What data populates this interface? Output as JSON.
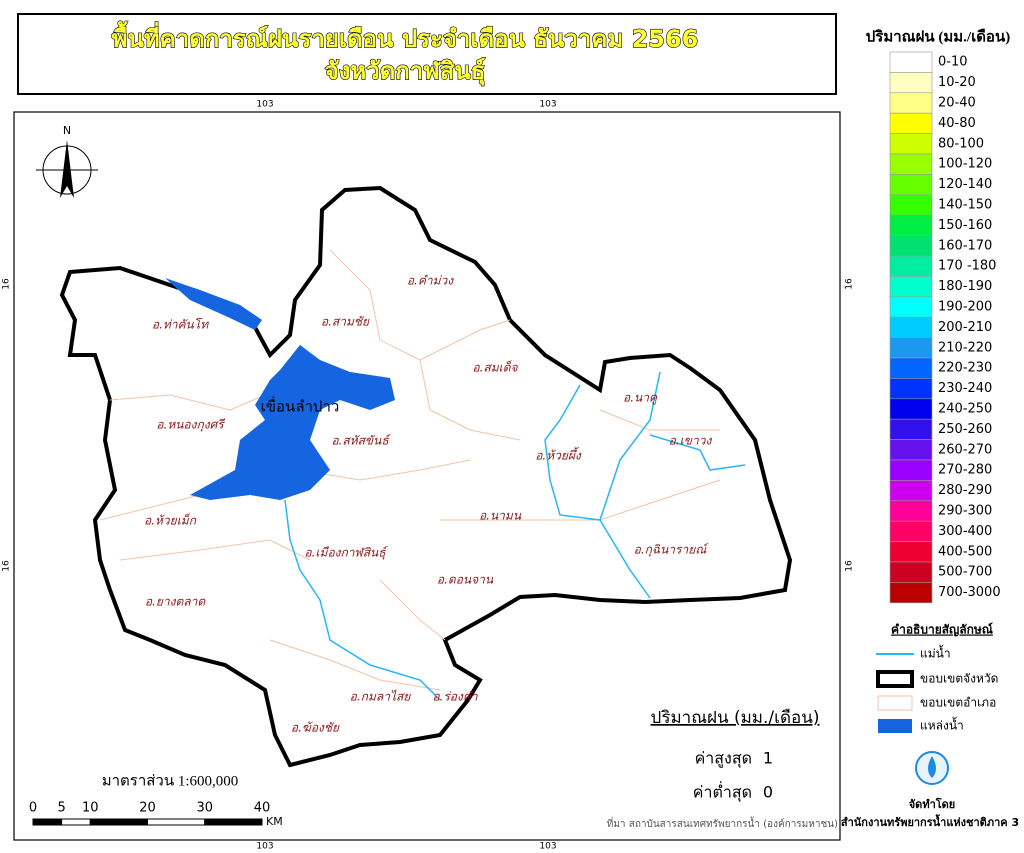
{
  "title": {
    "line1": "พื้นที่คาดการณ์ฝนรายเดือน ประจำเดือน ธันวาคม 2566",
    "line2": "จังหวัดกาฬสินธุ์"
  },
  "coordinates": {
    "top": [
      "103",
      "103"
    ],
    "bottom": [
      "103",
      "103"
    ],
    "left": [
      "16",
      "16"
    ],
    "right": [
      "16",
      "16"
    ]
  },
  "north": "N",
  "map_labels": {
    "reservoir": "เขื่อนลำปาว",
    "districts": [
      "อ.ท่าคันโท",
      "อ.สามชัย",
      "อ.คำม่วง",
      "อ.สมเด็จ",
      "อ.หนองกุงศรี",
      "อ.สหัสขันธ์",
      "อ.นาคู",
      "อ.เขาวง",
      "อ.ห้วยผึ้ง",
      "อ.ห้วยเม็ก",
      "อ.นามน",
      "อ.เมืองกาฬสินธุ์",
      "อ.กุฉินารายณ์",
      "อ.ดอนจาน",
      "อ.ยางตลาด",
      "อ.กมลาไสย",
      "อ.ร่องคำ",
      "อ.ฆ้องชัย"
    ]
  },
  "legend": {
    "title": "ปริมาณฝน (มม./เดือน)",
    "classes": [
      {
        "label": "0-10",
        "color": "#ffffff"
      },
      {
        "label": "10-20",
        "color": "#ffffc0"
      },
      {
        "label": "20-40",
        "color": "#ffff88"
      },
      {
        "label": "40-80",
        "color": "#ffff00"
      },
      {
        "label": "80-100",
        "color": "#ccff00"
      },
      {
        "label": "100-120",
        "color": "#99ff00"
      },
      {
        "label": "120-140",
        "color": "#66ff00"
      },
      {
        "label": "140-150",
        "color": "#33ff00"
      },
      {
        "label": "150-160",
        "color": "#00ee44"
      },
      {
        "label": "160-170",
        "color": "#00e070"
      },
      {
        "label": "170 -180",
        "color": "#00eea0"
      },
      {
        "label": "180-190",
        "color": "#00ffcc"
      },
      {
        "label": "190-200",
        "color": "#00ffff"
      },
      {
        "label": "200-210",
        "color": "#00ccff"
      },
      {
        "label": "210-220",
        "color": "#1a99ee"
      },
      {
        "label": "220-230",
        "color": "#0066ff"
      },
      {
        "label": "230-240",
        "color": "#0033ff"
      },
      {
        "label": "240-250",
        "color": "#0000ee"
      },
      {
        "label": "250-260",
        "color": "#3311ee"
      },
      {
        "label": "260-270",
        "color": "#6611ee"
      },
      {
        "label": "270-280",
        "color": "#9900ff"
      },
      {
        "label": "280-290",
        "color": "#cc00ee"
      },
      {
        "label": "290-300",
        "color": "#ff0099"
      },
      {
        "label": "300-400",
        "color": "#ff0066"
      },
      {
        "label": "400-500",
        "color": "#ee0033"
      },
      {
        "label": "500-700",
        "color": "#cc0022"
      },
      {
        "label": "700-3000",
        "color": "#bb0000"
      }
    ]
  },
  "symbols": {
    "title": "คำอธิบายสัญลักษณ์",
    "items": [
      "แม่น้ำ",
      "ขอบเขตจังหวัด",
      "ขอบเขตอำเภอ",
      "แหล่งน้ำ"
    ]
  },
  "stats": {
    "title": "ปริมาณฝน (มม./เดือน)",
    "max_label": "ค่าสูงสุด",
    "max": 1,
    "min_label": "ค่าต่ำสุด",
    "min": 0
  },
  "scale": {
    "ratio": "มาตราส่วน 1:600,000",
    "ticks": [
      0,
      5,
      10,
      20,
      30,
      40
    ],
    "unit": "KM"
  },
  "source": "ที่มา  สถาบันสารสนเทศทรัพยากรน้ำ (องค์การมหาชน)",
  "credit": {
    "label": "จัดทำโดย",
    "org": "สำนักงานทรัพยากรน้ำแห่งชาติภาค 3"
  }
}
